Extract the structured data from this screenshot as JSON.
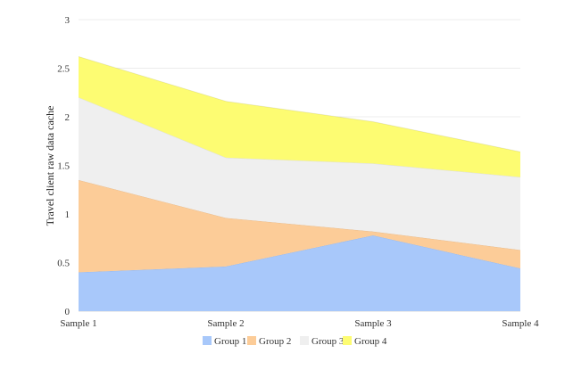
{
  "chart_data": {
    "type": "area",
    "stacked": true,
    "categories": [
      "Sample 1",
      "Sample 2",
      "Sample 3",
      "Sample 4"
    ],
    "series": [
      {
        "name": "Group 1",
        "values": [
          0.4,
          0.46,
          0.78,
          0.44
        ],
        "color": "#a8c8fa"
      },
      {
        "name": "Group 2",
        "values": [
          0.95,
          0.5,
          0.04,
          0.19
        ],
        "color": "#fccc98"
      },
      {
        "name": "Group 3",
        "values": [
          0.85,
          0.62,
          0.7,
          0.75
        ],
        "color": "#efefef"
      },
      {
        "name": "Group 4",
        "values": [
          0.42,
          0.58,
          0.43,
          0.26
        ],
        "color": "#fdfc72"
      }
    ],
    "xlabel": "",
    "ylabel": "Travel client raw data cache",
    "ylim": [
      0,
      3
    ],
    "yticks": [
      "0",
      "0.5",
      "1",
      "1.5",
      "2",
      "2.5",
      "3"
    ],
    "grid": true,
    "legend_position": "bottom"
  }
}
